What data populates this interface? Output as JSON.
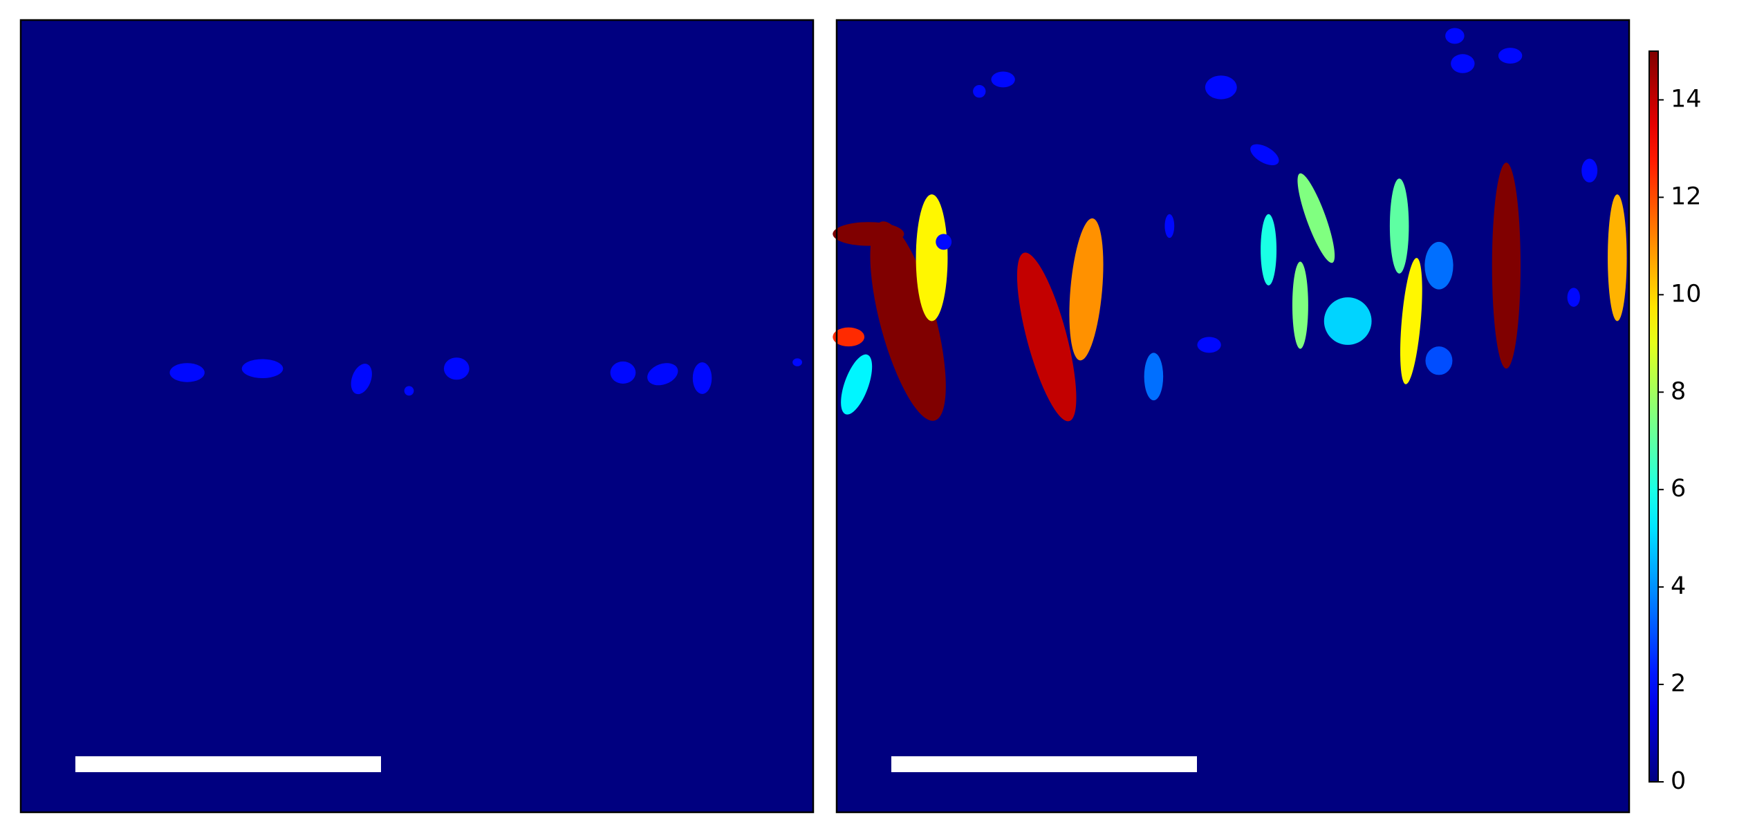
{
  "chart_data": {
    "type": "heatmap",
    "colormap": "jet",
    "panels": [
      {
        "values": [
          2,
          2,
          2,
          2,
          2,
          2,
          2,
          2,
          2,
          2
        ]
      },
      {
        "values": [
          15,
          15,
          9.5,
          12.5,
          5.5,
          14,
          11,
          3.5,
          6,
          7.5,
          7.5,
          5,
          7,
          9.5,
          3.5,
          3,
          15,
          10.5,
          2,
          2,
          2,
          2,
          2,
          2,
          2,
          2,
          2,
          2,
          2,
          2
        ]
      }
    ],
    "clim": [
      0,
      15
    ],
    "cticks": [
      0,
      2,
      4,
      6,
      8,
      10,
      12,
      14
    ]
  }
}
